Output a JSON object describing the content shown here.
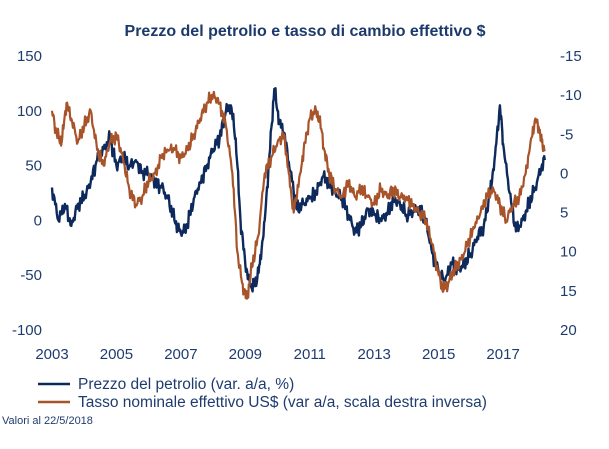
{
  "chart_data": {
    "type": "line",
    "title": "Prezzo del petrolio e tasso di cambio effettivo $",
    "x_range": [
      2003.0,
      2018.3
    ],
    "x_ticks": [
      "2003",
      "2005",
      "2007",
      "2009",
      "2011",
      "2013",
      "2015",
      "2017"
    ],
    "y_left": {
      "ylim": [
        -100,
        150
      ],
      "ticks": [
        "150",
        "100",
        "50",
        "0",
        "-50",
        "-100"
      ]
    },
    "y_right": {
      "ylim": [
        -15,
        20
      ],
      "inverted": true,
      "ticks": [
        "-15",
        "-10",
        "-5",
        "0",
        "5",
        "10",
        "15",
        "20"
      ]
    },
    "series": [
      {
        "name": "Prezzo del petrolio (var. a/a, %)",
        "axis": "left",
        "color": "#0e2a5c",
        "points": [
          [
            2003.0,
            30
          ],
          [
            2003.2,
            0
          ],
          [
            2003.4,
            15
          ],
          [
            2003.6,
            -5
          ],
          [
            2003.8,
            15
          ],
          [
            2004.0,
            20
          ],
          [
            2004.2,
            35
          ],
          [
            2004.4,
            55
          ],
          [
            2004.6,
            65
          ],
          [
            2004.8,
            75
          ],
          [
            2005.0,
            50
          ],
          [
            2005.2,
            58
          ],
          [
            2005.4,
            50
          ],
          [
            2005.6,
            55
          ],
          [
            2005.8,
            45
          ],
          [
            2006.0,
            42
          ],
          [
            2006.2,
            35
          ],
          [
            2006.4,
            30
          ],
          [
            2006.6,
            20
          ],
          [
            2006.8,
            0
          ],
          [
            2007.0,
            -12
          ],
          [
            2007.2,
            -5
          ],
          [
            2007.4,
            20
          ],
          [
            2007.6,
            35
          ],
          [
            2007.8,
            50
          ],
          [
            2008.0,
            65
          ],
          [
            2008.2,
            75
          ],
          [
            2008.4,
            100
          ],
          [
            2008.55,
            105
          ],
          [
            2008.7,
            75
          ],
          [
            2008.85,
            0
          ],
          [
            2009.0,
            -40
          ],
          [
            2009.15,
            -60
          ],
          [
            2009.3,
            -60
          ],
          [
            2009.45,
            -40
          ],
          [
            2009.6,
            0
          ],
          [
            2009.75,
            60
          ],
          [
            2009.9,
            120
          ],
          [
            2010.05,
            90
          ],
          [
            2010.2,
            80
          ],
          [
            2010.4,
            45
          ],
          [
            2010.6,
            10
          ],
          [
            2010.8,
            15
          ],
          [
            2011.0,
            20
          ],
          [
            2011.2,
            25
          ],
          [
            2011.4,
            40
          ],
          [
            2011.6,
            35
          ],
          [
            2011.8,
            25
          ],
          [
            2012.0,
            20
          ],
          [
            2012.2,
            5
          ],
          [
            2012.4,
            -10
          ],
          [
            2012.6,
            -5
          ],
          [
            2012.8,
            10
          ],
          [
            2013.0,
            5
          ],
          [
            2013.2,
            0
          ],
          [
            2013.4,
            5
          ],
          [
            2013.6,
            20
          ],
          [
            2013.8,
            15
          ],
          [
            2014.0,
            5
          ],
          [
            2014.2,
            8
          ],
          [
            2014.4,
            12
          ],
          [
            2014.6,
            0
          ],
          [
            2014.8,
            -30
          ],
          [
            2015.0,
            -48
          ],
          [
            2015.2,
            -55
          ],
          [
            2015.4,
            -40
          ],
          [
            2015.6,
            -45
          ],
          [
            2015.8,
            -40
          ],
          [
            2016.0,
            -30
          ],
          [
            2016.2,
            -15
          ],
          [
            2016.4,
            -5
          ],
          [
            2016.6,
            25
          ],
          [
            2016.75,
            60
          ],
          [
            2016.9,
            105
          ],
          [
            2017.0,
            70
          ],
          [
            2017.2,
            25
          ],
          [
            2017.4,
            -10
          ],
          [
            2017.6,
            0
          ],
          [
            2017.8,
            15
          ],
          [
            2018.0,
            30
          ],
          [
            2018.2,
            50
          ],
          [
            2018.3,
            55
          ]
        ]
      },
      {
        "name": "Tasso nominale effettivo US$ (var a/a, scala destra inversa)",
        "axis": "right",
        "color": "#a8542a",
        "points": [
          [
            2003.0,
            -8
          ],
          [
            2003.15,
            -5
          ],
          [
            2003.3,
            -4
          ],
          [
            2003.45,
            -9
          ],
          [
            2003.6,
            -7
          ],
          [
            2003.8,
            -4
          ],
          [
            2004.0,
            -6
          ],
          [
            2004.2,
            -8
          ],
          [
            2004.4,
            -3
          ],
          [
            2004.6,
            -1
          ],
          [
            2004.8,
            -4
          ],
          [
            2005.0,
            -5
          ],
          [
            2005.2,
            -2
          ],
          [
            2005.4,
            2
          ],
          [
            2005.6,
            4
          ],
          [
            2005.8,
            3
          ],
          [
            2006.0,
            1
          ],
          [
            2006.2,
            0
          ],
          [
            2006.4,
            -2
          ],
          [
            2006.6,
            -3
          ],
          [
            2006.8,
            -3
          ],
          [
            2007.0,
            -2
          ],
          [
            2007.2,
            -3
          ],
          [
            2007.4,
            -5
          ],
          [
            2007.6,
            -7
          ],
          [
            2007.8,
            -9
          ],
          [
            2008.0,
            -10
          ],
          [
            2008.2,
            -9
          ],
          [
            2008.4,
            -6
          ],
          [
            2008.6,
            0
          ],
          [
            2008.75,
            10
          ],
          [
            2008.9,
            14
          ],
          [
            2009.05,
            16
          ],
          [
            2009.2,
            12
          ],
          [
            2009.4,
            8
          ],
          [
            2009.6,
            0
          ],
          [
            2009.8,
            -2
          ],
          [
            2010.0,
            -4
          ],
          [
            2010.2,
            -5
          ],
          [
            2010.35,
            0
          ],
          [
            2010.5,
            5
          ],
          [
            2010.7,
            0
          ],
          [
            2010.85,
            -4
          ],
          [
            2011.0,
            -7
          ],
          [
            2011.15,
            -8
          ],
          [
            2011.3,
            -7
          ],
          [
            2011.45,
            -3
          ],
          [
            2011.6,
            0
          ],
          [
            2011.8,
            2
          ],
          [
            2012.0,
            3
          ],
          [
            2012.2,
            1
          ],
          [
            2012.4,
            3
          ],
          [
            2012.6,
            2
          ],
          [
            2012.8,
            3
          ],
          [
            2013.0,
            4
          ],
          [
            2013.2,
            2
          ],
          [
            2013.4,
            3
          ],
          [
            2013.6,
            2
          ],
          [
            2013.8,
            3
          ],
          [
            2014.0,
            3
          ],
          [
            2014.2,
            4
          ],
          [
            2014.4,
            5
          ],
          [
            2014.6,
            6
          ],
          [
            2014.8,
            9
          ],
          [
            2015.0,
            13
          ],
          [
            2015.15,
            15
          ],
          [
            2015.3,
            14
          ],
          [
            2015.5,
            12
          ],
          [
            2015.7,
            11
          ],
          [
            2015.9,
            9
          ],
          [
            2016.1,
            7
          ],
          [
            2016.3,
            5
          ],
          [
            2016.5,
            3
          ],
          [
            2016.7,
            2
          ],
          [
            2016.9,
            4
          ],
          [
            2017.1,
            6
          ],
          [
            2017.3,
            4
          ],
          [
            2017.5,
            3
          ],
          [
            2017.7,
            0
          ],
          [
            2017.85,
            -4
          ],
          [
            2018.0,
            -7
          ],
          [
            2018.1,
            -6
          ],
          [
            2018.2,
            -4
          ],
          [
            2018.3,
            -3
          ]
        ]
      }
    ],
    "legend": {
      "position": "bottom-left",
      "entries": [
        {
          "label": "Prezzo del petrolio (var. a/a, %)",
          "color": "#0e2a5c"
        },
        {
          "label": "Tasso nominale effettivo US$ (var a/a, scala destra inversa)",
          "color": "#a8542a"
        }
      ]
    },
    "note": "Valori al 22/5/2018",
    "grid": false
  }
}
